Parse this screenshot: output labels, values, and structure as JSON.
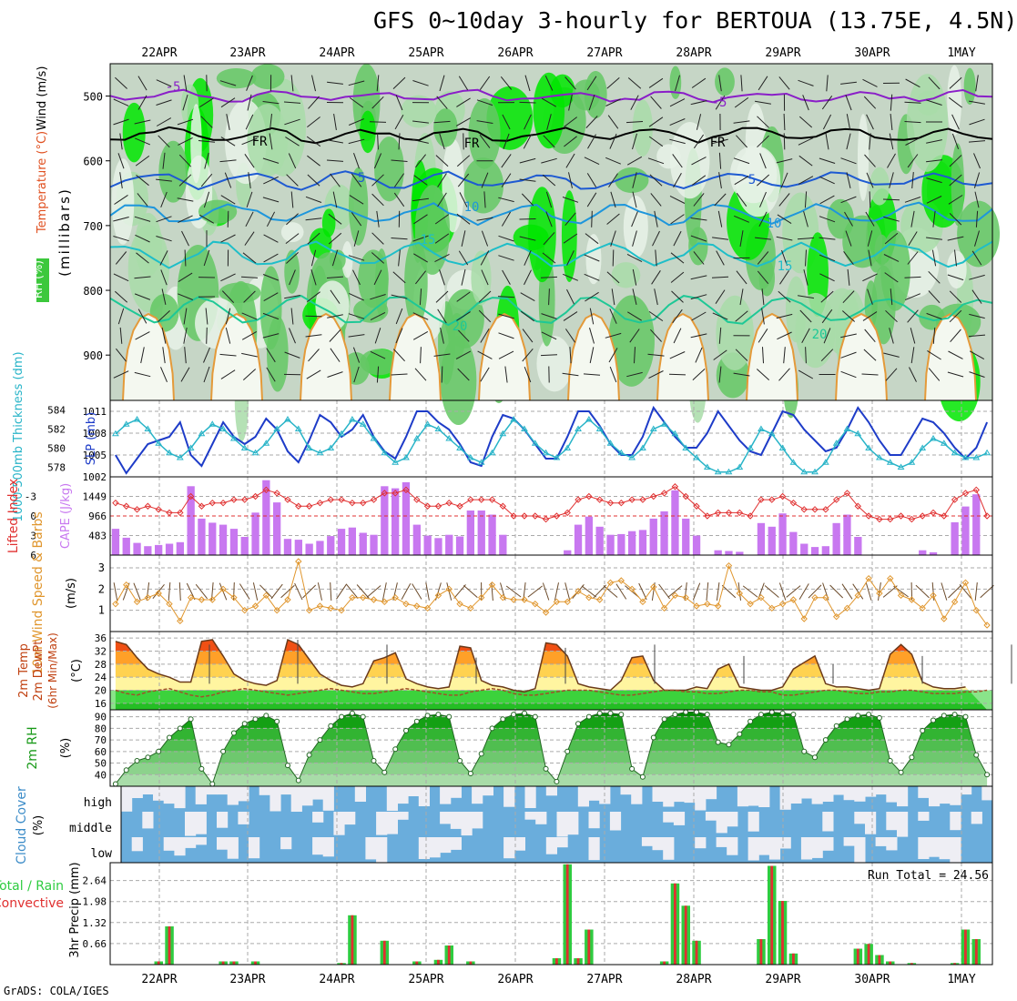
{
  "title": "GFS 0~10day 3-hourly for BERTOUA (13.75E, 4.5N)",
  "footer": "GrADS: COLA/IGES",
  "colors": {
    "rh_light": "#a8dca8",
    "rh_mid": "#64c864",
    "rh_bright": "#00e600",
    "rh_dark": "#00a000",
    "slp": "#1e3cc8",
    "thick": "#28b4c8",
    "lifted": "#e03030",
    "cape": "#c878f0",
    "wind": "#e0962d",
    "cloud": "#6aaddc",
    "precip_total": "#2ecc40",
    "precip_conv": "#e03030"
  },
  "chart_data": [
    {
      "type": "heatmap",
      "panel": "vertical-profile",
      "ylabel": "(millibars)",
      "yticks": [
        500,
        600,
        700,
        800,
        900
      ],
      "ylim": [
        450,
        970
      ],
      "side_labels": [
        "RH (%)",
        "Temperature (°C)",
        "Wind (m/s)"
      ],
      "x_dates": [
        "22APR",
        "23APR",
        "24APR",
        "25APR",
        "26APR",
        "27APR",
        "28APR",
        "29APR",
        "30APR",
        "1MAY"
      ],
      "contour_labels": [
        "-5",
        "FR",
        "FR",
        "FR",
        "-5",
        "5",
        "5",
        "10",
        "10",
        "15",
        "15",
        "20",
        "20"
      ],
      "isotherms": [
        {
          "name": "-5",
          "level": 500
        },
        {
          "name": "0",
          "level": 560
        },
        {
          "name": "5",
          "level": 630
        },
        {
          "name": "10",
          "level": 682
        },
        {
          "name": "15",
          "level": 745
        },
        {
          "name": "20",
          "level": 830
        }
      ]
    },
    {
      "type": "line",
      "panel": "slp-thickness",
      "left_label": "1000-500mb Thickness (dm)",
      "right_label": "SLP (mb)",
      "left_ticks": [
        578,
        580,
        582,
        584
      ],
      "right_ticks": [
        1002,
        1005,
        1008,
        1011
      ],
      "left_ylim": [
        577,
        585
      ],
      "right_ylim": [
        1002,
        1012.5
      ],
      "series": [
        {
          "name": "SLP (mb)",
          "values": [
            1005,
            1002.5,
            1004.5,
            1006.5,
            1007,
            1007.5,
            1009.5,
            1005,
            1003.5,
            1006.5,
            1009.5,
            1007.5,
            1006.5,
            1007.5,
            1010,
            1008.5,
            1005.5,
            1004,
            1007,
            1010.5,
            1009.5,
            1007.5,
            1008.5,
            1010.5,
            1007.5,
            1005.5,
            1004.5,
            1007.5,
            1011,
            1011,
            1009.5,
            1008.5,
            1006.5,
            1004,
            1003.5,
            1007.5,
            1010.5,
            1010,
            1008.5,
            1006.5,
            1004.5,
            1004.5,
            1007.5,
            1011,
            1011,
            1009,
            1006.5,
            1005,
            1005,
            1007.5,
            1011.5,
            1009.5,
            1007.5,
            1006,
            1006,
            1008,
            1011,
            1009,
            1007,
            1005.5,
            1005,
            1008,
            1011,
            1010.5,
            1008.5,
            1007,
            1005.5,
            1006,
            1008.5,
            1011.5,
            1009.5,
            1007,
            1005,
            1005,
            1007.5,
            1010,
            1009.5,
            1008,
            1006,
            1004.5,
            1006,
            1009.5
          ]
        },
        {
          "name": "Thickness (dm)",
          "values": [
            581.5,
            582.5,
            583,
            582,
            580.5,
            579.5,
            579,
            580,
            581.5,
            582.5,
            582,
            581,
            580,
            579.5,
            580.5,
            582,
            583,
            582,
            580,
            579.5,
            580,
            581.5,
            583,
            582.5,
            581,
            579.5,
            578.5,
            579,
            581,
            582.5,
            582,
            581,
            580,
            579,
            578.5,
            579.5,
            581.5,
            583,
            582,
            580.5,
            579.5,
            579,
            580,
            582,
            583,
            582,
            580.5,
            579.5,
            579,
            580,
            582,
            582.5,
            581.5,
            580,
            579,
            578,
            577.5,
            577.5,
            578,
            580,
            582,
            581.5,
            580,
            578.5,
            577.5,
            577.5,
            578.5,
            580.5,
            582,
            581.5,
            580,
            579,
            578.5,
            578,
            578.5,
            580,
            581,
            580.5,
            579.5,
            579,
            579,
            579.5
          ]
        }
      ]
    },
    {
      "type": "bar",
      "panel": "cape-lifted-index",
      "left_label": "Lifted Index",
      "right_label": "CAPE (J/kg)",
      "left_ticks": [
        -3,
        0,
        3,
        6
      ],
      "right_ticks": [
        483,
        966,
        1449
      ],
      "li_ylim": [
        -6,
        6
      ],
      "cape_ylim": [
        0,
        1932
      ],
      "series": [
        {
          "name": "CAPE (J/kg)",
          "values": [
            650,
            430,
            300,
            220,
            250,
            280,
            320,
            1700,
            900,
            800,
            750,
            650,
            450,
            1050,
            1850,
            1300,
            400,
            380,
            280,
            350,
            470,
            650,
            680,
            550,
            500,
            1700,
            1650,
            1800,
            750,
            480,
            420,
            500,
            460,
            1100,
            1100,
            1000,
            500,
            0,
            0,
            0,
            0,
            0,
            120,
            750,
            950,
            700,
            500,
            520,
            590,
            620,
            900,
            1080,
            1600,
            900,
            480,
            0,
            120,
            100,
            80,
            0,
            790,
            700,
            1030,
            570,
            280,
            200,
            220,
            790,
            1000,
            450,
            0,
            0,
            0,
            0,
            0,
            120,
            70,
            0,
            810,
            1200,
            1500,
            0
          ]
        },
        {
          "name": "Lifted Index",
          "values": [
            -2,
            -1.5,
            -1,
            -1.5,
            -1,
            -0.5,
            -0.5,
            -3,
            -1.5,
            -2,
            -2,
            -2.5,
            -2.5,
            -3,
            -4,
            -3.5,
            -2.5,
            -1.5,
            -1.5,
            -2,
            -2.5,
            -2.5,
            -2,
            -2,
            -2.5,
            -3.5,
            -3.5,
            -4,
            -2.5,
            -1.5,
            -1.5,
            -2,
            -1.5,
            -2.5,
            -2.5,
            -2.5,
            -1.5,
            0,
            0,
            0,
            0.5,
            0,
            -0.5,
            -2.5,
            -3,
            -2.5,
            -2,
            -2,
            -2.5,
            -2.5,
            -3,
            -3.5,
            -4.5,
            -3,
            -1.5,
            0,
            -0.5,
            -0.5,
            -0.5,
            0,
            -2.5,
            -2.5,
            -3,
            -2,
            -1,
            -1,
            -1,
            -2.5,
            -3.5,
            -1.5,
            0,
            0.5,
            0.5,
            0,
            0.5,
            0,
            -0.5,
            0,
            -2.5,
            -3.5,
            -4,
            0
          ]
        }
      ]
    },
    {
      "type": "line",
      "panel": "10m-wind",
      "left_label": "10m Wind Speed & Barbs",
      "ylabel": "(m/s)",
      "yticks": [
        1,
        2,
        3
      ],
      "ylim": [
        0,
        3.6
      ],
      "series": [
        {
          "name": "10m Wind Speed (m/s)",
          "values": [
            1.3,
            2.2,
            1.4,
            1.6,
            1.8,
            1.3,
            0.5,
            1.6,
            1.5,
            1.5,
            2,
            1.6,
            1,
            1.2,
            1.7,
            1,
            1.5,
            3.3,
            1,
            1.2,
            1.1,
            1,
            1.6,
            1.6,
            1.5,
            1.4,
            1.6,
            1.3,
            1.2,
            1.1,
            1.7,
            2,
            1.3,
            1.1,
            1.6,
            2.2,
            1.6,
            1.5,
            1.5,
            1.3,
            0.9,
            1.4,
            1.4,
            1.9,
            1.6,
            1.5,
            2.3,
            2.4,
            2,
            1.4,
            2.1,
            1.1,
            1.7,
            1.6,
            1.2,
            1.3,
            1.2,
            3.1,
            1.8,
            1.3,
            1.6,
            1.1,
            1.3,
            1.5,
            0.6,
            1.6,
            1.6,
            0.7,
            1.1,
            1.7,
            2.5,
            1.8,
            2.5,
            1.7,
            1.5,
            1.1,
            1.7,
            0.6,
            1.4,
            2.3,
            1,
            0.3
          ]
        }
      ]
    },
    {
      "type": "area",
      "panel": "2m-temp-dewpt",
      "left_label": "2m Temp 2m DewPt (6hr Min/Max)",
      "ylabel": "(°C)",
      "yticks": [
        16,
        20,
        24,
        28,
        32,
        36
      ],
      "ylim": [
        14,
        38
      ],
      "series": [
        {
          "name": "2m Temp (°C)",
          "values": [
            35,
            34,
            30,
            26.5,
            25,
            24,
            22.5,
            22.5,
            35,
            35.5,
            30.5,
            25,
            23,
            22,
            21.5,
            23,
            35.5,
            34,
            29.5,
            25,
            23,
            21.5,
            21,
            22,
            29,
            30,
            31.5,
            23.5,
            22,
            21,
            20.5,
            21,
            33.5,
            33,
            23,
            21.5,
            21,
            20,
            19.5,
            20.5,
            34.5,
            34,
            30.5,
            22,
            21,
            20.5,
            20,
            23,
            30,
            30.5,
            23,
            20,
            20,
            20,
            21,
            20.5,
            26.5,
            28,
            21,
            20.5,
            20,
            20,
            21,
            26.5,
            28.5,
            30.5,
            22,
            21,
            21,
            20.5,
            20,
            20.5,
            31,
            34,
            31,
            22.5,
            21,
            20.5,
            20.5,
            21
          ]
        },
        {
          "name": "2m DewPt (°C)",
          "values": [
            20,
            19,
            18.5,
            19.5,
            20,
            20.5,
            19.5,
            18.5,
            18,
            18.5,
            19.5,
            20,
            20.5,
            20,
            19.5,
            19,
            18.5,
            19,
            19.5,
            20,
            20.5,
            20,
            19.5,
            19,
            19,
            19.5,
            20,
            20.5,
            20,
            19.5,
            19,
            18.5,
            18.5,
            19.5,
            20,
            20.5,
            20,
            19,
            18.5,
            18.5,
            19,
            19.5,
            20,
            20,
            20,
            19.5,
            19,
            18.5,
            18.5,
            19,
            19.5,
            20,
            20,
            19.5,
            19.5,
            19,
            19,
            19.5,
            20,
            20,
            19.5,
            19.5,
            18.5,
            18.5,
            19,
            19.5,
            20,
            20,
            19.5,
            19,
            19,
            19.5,
            19.5,
            20,
            20,
            19.5,
            19,
            19,
            19,
            19.5,
            19.5,
            20
          ]
        }
      ]
    },
    {
      "type": "area",
      "panel": "2m-rh",
      "left_label": "2m RH",
      "ylabel": "(%)",
      "yticks": [
        40,
        50,
        60,
        70,
        80,
        90
      ],
      "ylim": [
        30,
        96
      ],
      "series": [
        {
          "name": "2m RH (%)",
          "values": [
            32,
            44,
            52,
            55,
            60,
            72,
            80,
            88,
            45,
            32,
            60,
            76,
            84,
            88,
            91,
            86,
            48,
            35,
            57,
            70,
            82,
            90,
            93,
            90,
            52,
            42,
            62,
            78,
            86,
            91,
            92,
            90,
            52,
            41,
            58,
            80,
            88,
            92,
            93,
            90,
            45,
            34,
            60,
            84,
            90,
            93,
            93,
            92,
            45,
            38,
            72,
            88,
            92,
            94,
            94,
            92,
            68,
            66,
            75,
            86,
            92,
            94,
            93,
            92,
            60,
            55,
            70,
            82,
            88,
            91,
            92,
            89,
            52,
            42,
            55,
            78,
            87,
            91,
            92,
            90,
            57,
            40
          ]
        }
      ]
    },
    {
      "type": "heatmap",
      "panel": "cloud-cover",
      "left_label": "Cloud Cover (%)",
      "levels": [
        "high",
        "middle",
        "low"
      ]
    },
    {
      "type": "bar",
      "panel": "3hr-precip",
      "left_label_total": "Total / Rain",
      "left_label_conv": "Convective",
      "ylabel": "3hr Precip (mm)",
      "yticks": [
        0.66,
        1.32,
        1.98,
        2.64
      ],
      "ylim": [
        0,
        3.2
      ],
      "run_total_text": "Run Total = 24.56",
      "series": [
        {
          "name": "Total / Rain (mm)",
          "values": [
            0,
            0,
            0,
            0,
            0.1,
            1.2,
            0,
            0,
            0,
            0,
            0.1,
            0.1,
            0,
            0.1,
            0,
            0,
            0,
            0,
            0,
            0,
            0,
            0.05,
            1.55,
            0,
            0,
            0.75,
            0,
            0,
            0.1,
            0,
            0.15,
            0.6,
            0,
            0.1,
            0,
            0,
            0,
            0,
            0,
            0,
            0,
            0.2,
            3.15,
            0.2,
            1.1,
            0,
            0,
            0,
            0,
            0,
            0,
            0.1,
            2.55,
            1.85,
            0.75,
            0,
            0,
            0,
            0,
            0,
            0.8,
            3.1,
            2.0,
            0.35,
            0,
            0,
            0,
            0,
            0,
            0.5,
            0.65,
            0.3,
            0.1,
            0,
            0.05,
            0,
            0,
            0,
            0.05,
            1.1,
            0.8,
            0
          ]
        },
        {
          "name": "Convective (mm)",
          "values": [
            0,
            0,
            0,
            0,
            0.1,
            1.2,
            0,
            0,
            0,
            0,
            0.1,
            0.1,
            0,
            0.1,
            0,
            0,
            0,
            0,
            0,
            0,
            0,
            0.05,
            1.55,
            0,
            0,
            0.75,
            0,
            0,
            0.1,
            0,
            0.15,
            0.6,
            0,
            0.1,
            0,
            0,
            0,
            0,
            0,
            0,
            0,
            0.2,
            3.15,
            0.2,
            1.1,
            0,
            0,
            0,
            0,
            0,
            0,
            0.1,
            2.55,
            1.85,
            0.75,
            0,
            0,
            0,
            0,
            0,
            0.8,
            3.1,
            2.0,
            0.35,
            0,
            0,
            0,
            0,
            0,
            0.5,
            0.65,
            0.3,
            0.1,
            0,
            0.05,
            0,
            0,
            0,
            0.05,
            1.1,
            0.8,
            0
          ]
        }
      ]
    }
  ]
}
